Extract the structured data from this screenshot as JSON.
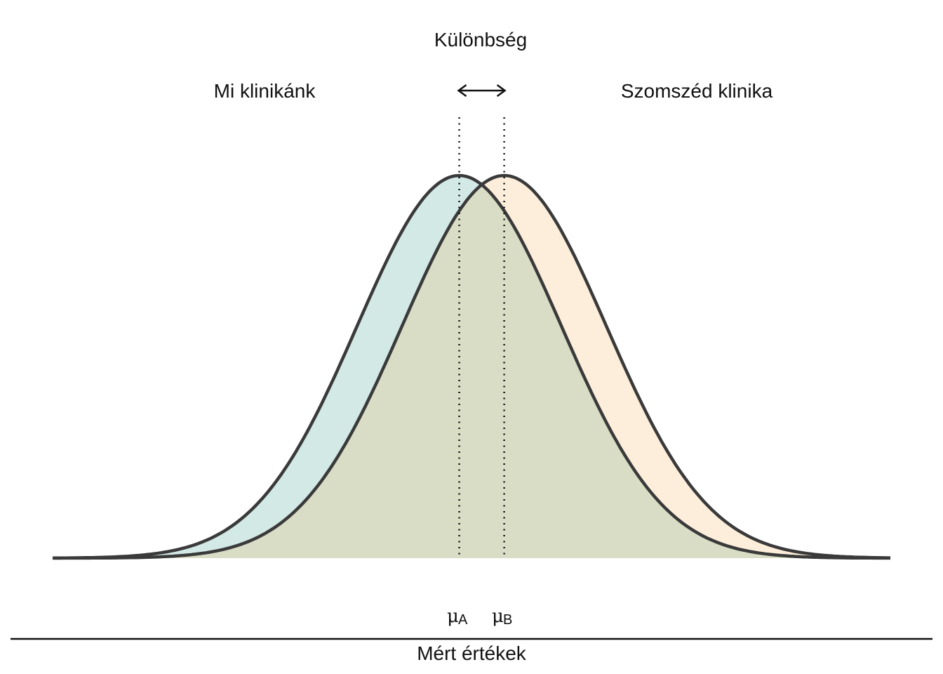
{
  "labels": {
    "difference": "Különbség",
    "our_clinic": "Mi klinikánk",
    "neighbor_clinic": "Szomszéd klinika",
    "axis": "Mért értékek"
  },
  "means": {
    "a": {
      "symbol": "μ",
      "sub": "A"
    },
    "b": {
      "symbol": "μ",
      "sub": "B"
    }
  },
  "distributions": {
    "a": {
      "mean": -0.22,
      "sd": 1.0
    },
    "b": {
      "mean": 0.22,
      "sd": 1.0
    },
    "x_range": [
      -4.2,
      4.0
    ]
  },
  "colors": {
    "curve_a_fill": "#d3e9e6",
    "curve_b_fill": "#fdeedb",
    "overlap_fill": "#d9ddc5",
    "stroke": "#3a3a3a"
  }
}
